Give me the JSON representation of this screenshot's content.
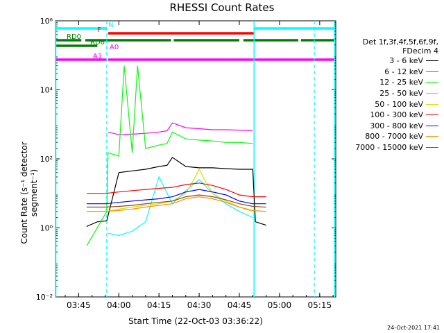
{
  "title": "RHESSI Count Rates",
  "xlabel": "Start Time (22-Oct-03 03:36:22)",
  "ylabel": "Count Rate (s⁻¹ detector segment⁻¹)",
  "footer_date": "24-Oct-2021 17:41",
  "legend": {
    "header_line1": "Det 1f,3f,4f,5f,6f,9f,",
    "header_line2": "FDecim 4",
    "entries": [
      {
        "label": "3 - 6 keV",
        "color": "#000000"
      },
      {
        "label": "6 - 12 keV",
        "color": "#ff00ff"
      },
      {
        "label": "12 - 25 keV",
        "color": "#00ff00"
      },
      {
        "label": "25 - 50 keV",
        "color": "#00ffff"
      },
      {
        "label": "50 - 100 keV",
        "color": "#dddd00"
      },
      {
        "label": "100 - 300 keV",
        "color": "#ff0000"
      },
      {
        "label": "300 - 800 keV",
        "color": "#0000ff"
      },
      {
        "label": "800 - 7000 keV",
        "color": "#ff8c00"
      },
      {
        "label": "7000 - 15000 keV",
        "color": "#8b4513"
      }
    ]
  },
  "chart_data": {
    "type": "line",
    "title": "RHESSI Count Rates",
    "xlabel": "Start Time (22-Oct-03 03:36:22)",
    "ylabel": "Count Rate (s⁻¹ detector segment⁻¹)",
    "yscale": "log",
    "xlim": [
      "03:36:22",
      "05:21:00"
    ],
    "ylim": [
      0.01,
      1000000
    ],
    "x_ticks": [
      "03:45",
      "04:00",
      "04:15",
      "04:30",
      "04:45",
      "05:00",
      "05:15"
    ],
    "y_ticks": [
      {
        "value": 0.01,
        "label": "10⁻²"
      },
      {
        "value": 1,
        "label": "10⁰"
      },
      {
        "value": 100,
        "label": "10²"
      },
      {
        "value": 10000,
        "label": "10⁴"
      },
      {
        "value": 1000000,
        "label": "10⁶"
      }
    ],
    "attenuator_lines": [
      {
        "time": "03:55:30",
        "color": "#00ffff",
        "style": "dashed"
      },
      {
        "time": "05:13:00",
        "color": "#00ffff",
        "style": "dashed"
      }
    ],
    "night_lines": [
      {
        "time": "03:36:30",
        "color": "#00ffff"
      },
      {
        "time": "04:50:30",
        "color": "#00ffff"
      },
      {
        "time": "05:20:30",
        "color": "#00ffff"
      }
    ],
    "flag_bars": [
      {
        "label": "N",
        "color": "#00ffff",
        "segments": [
          [
            "03:36:22",
            "03:55:30"
          ],
          [
            "04:50:30",
            "05:20:30"
          ]
        ]
      },
      {
        "label": "F",
        "color": "#ff0000",
        "segments": [
          [
            "03:56:00",
            "04:50:30"
          ]
        ]
      },
      {
        "label": "RD0",
        "color": "#008000",
        "segments": [
          [
            "03:36:22",
            "03:46:00"
          ],
          [
            "03:47:30",
            "04:19:30"
          ],
          [
            "04:20:30",
            "04:45:00"
          ],
          [
            "04:46:30",
            "05:07:00"
          ],
          [
            "05:08:00",
            "05:20:30"
          ]
        ]
      },
      {
        "label": "RD6",
        "color": "#008000",
        "segments": [
          [
            "03:36:22",
            "03:52:00"
          ]
        ]
      },
      {
        "label": "A0",
        "color": "#ff00ff",
        "segments": []
      },
      {
        "label": "A1",
        "color": "#ff00ff",
        "segments": [
          [
            "03:36:22",
            "03:55:30"
          ],
          [
            "03:56:00",
            "04:50:30"
          ],
          [
            "04:50:30",
            "05:20:30"
          ]
        ]
      }
    ],
    "series": [
      {
        "name": "3 - 6 keV",
        "color": "#000000",
        "x": [
          "03:48:00",
          "03:52:00",
          "03:55:30",
          "04:00:00",
          "04:05:00",
          "04:10:00",
          "04:15:00",
          "04:18:00",
          "04:20:00",
          "04:25:00",
          "04:30:00",
          "04:35:00",
          "04:40:00",
          "04:45:00",
          "04:50:00",
          "04:51:00",
          "04:55:00"
        ],
        "values": [
          1.1,
          1.5,
          1.6,
          40,
          45,
          50,
          60,
          65,
          110,
          60,
          55,
          55,
          52,
          50,
          50,
          1.5,
          1.2
        ]
      },
      {
        "name": "6 - 12 keV",
        "color": "#ff00ff",
        "x": [
          "03:56:00",
          "04:00:00",
          "04:05:00",
          "04:10:00",
          "04:15:00",
          "04:18:00",
          "04:20:00",
          "04:25:00",
          "04:30:00",
          "04:35:00",
          "04:40:00",
          "04:45:00",
          "04:50:00"
        ],
        "values": [
          600,
          500,
          520,
          550,
          600,
          650,
          1100,
          800,
          750,
          700,
          700,
          680,
          650
        ]
      },
      {
        "name": "12 - 25 keV",
        "color": "#00ff00",
        "x": [
          "03:48:00",
          "03:55:30",
          "03:56:00",
          "04:00:00",
          "04:02:00",
          "04:05:00",
          "04:07:00",
          "04:10:00",
          "04:15:00",
          "04:18:00",
          "04:20:00",
          "04:25:00",
          "04:30:00",
          "04:35:00",
          "04:40:00",
          "04:45:00",
          "04:50:00"
        ],
        "values": [
          0.3,
          3,
          150,
          120,
          50000,
          150,
          50000,
          200,
          250,
          280,
          600,
          380,
          350,
          330,
          300,
          300,
          280
        ]
      },
      {
        "name": "25 - 50 keV",
        "color": "#00ffff",
        "x": [
          "03:56:00",
          "04:00:00",
          "04:05:00",
          "04:10:00",
          "04:15:00",
          "04:20:00",
          "04:25:00",
          "04:30:00",
          "04:35:00",
          "04:40:00",
          "04:45:00",
          "04:50:00"
        ],
        "values": [
          0.7,
          0.6,
          0.8,
          1.5,
          30,
          5,
          12,
          25,
          10,
          5,
          3,
          2
        ]
      },
      {
        "name": "50 - 100 keV",
        "color": "#dddd00",
        "x": [
          "03:48:00",
          "03:55:00",
          "04:00:00",
          "04:05:00",
          "04:10:00",
          "04:15:00",
          "04:20:00",
          "04:25:00",
          "04:28:00",
          "04:30:00",
          "04:32:00",
          "04:35:00",
          "04:40:00",
          "04:45:00",
          "04:50:00"
        ],
        "values": [
          3,
          3,
          3.5,
          4,
          4.5,
          5,
          6,
          10,
          25,
          50,
          25,
          10,
          6,
          4,
          3
        ]
      },
      {
        "name": "100 - 300 keV",
        "color": "#ff0000",
        "x": [
          "03:48:00",
          "03:55:00",
          "04:00:00",
          "04:05:00",
          "04:10:00",
          "04:15:00",
          "04:20:00",
          "04:25:00",
          "04:30:00",
          "04:35:00",
          "04:40:00",
          "04:45:00",
          "04:50:00",
          "04:55:00"
        ],
        "values": [
          10,
          10,
          11,
          12,
          13,
          14,
          15,
          18,
          20,
          17,
          13,
          9,
          8,
          8
        ]
      },
      {
        "name": "300 - 800 keV",
        "color": "#0000ff",
        "x": [
          "03:48:00",
          "03:55:00",
          "04:00:00",
          "04:05:00",
          "04:10:00",
          "04:15:00",
          "04:20:00",
          "04:25:00",
          "04:30:00",
          "04:35:00",
          "04:40:00",
          "04:45:00",
          "04:50:00",
          "04:55:00"
        ],
        "values": [
          5,
          5,
          5.5,
          6,
          6.5,
          7,
          8,
          11,
          13,
          11,
          9,
          6,
          5,
          5
        ]
      },
      {
        "name": "800 - 7000 keV",
        "color": "#ff8c00",
        "x": [
          "03:48:00",
          "03:55:00",
          "04:00:00",
          "04:05:00",
          "04:10:00",
          "04:15:00",
          "04:20:00",
          "04:25:00",
          "04:30:00",
          "04:35:00",
          "04:40:00",
          "04:45:00",
          "04:50:00",
          "04:55:00"
        ],
        "values": [
          3,
          3,
          3.2,
          3.5,
          4,
          4.5,
          5,
          7,
          8,
          7,
          5.5,
          4,
          3.2,
          3
        ]
      },
      {
        "name": "7000 - 15000 keV",
        "color": "#8b4513",
        "x": [
          "03:48:00",
          "03:55:00",
          "04:00:00",
          "04:05:00",
          "04:10:00",
          "04:15:00",
          "04:20:00",
          "04:25:00",
          "04:30:00",
          "04:35:00",
          "04:40:00",
          "04:45:00",
          "04:50:00",
          "04:55:00"
        ],
        "values": [
          4,
          4,
          4.2,
          4.5,
          5,
          5.5,
          6,
          8,
          9,
          8,
          6.5,
          5,
          4.2,
          4
        ]
      }
    ]
  }
}
